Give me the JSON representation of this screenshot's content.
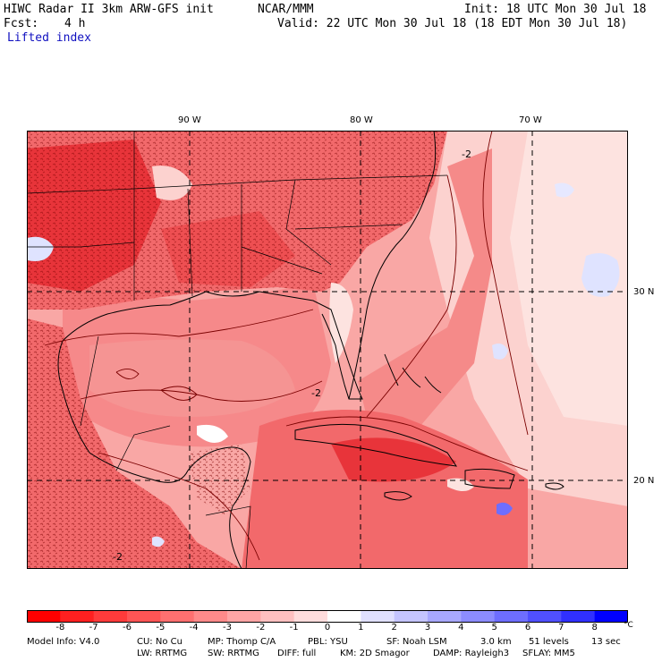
{
  "header": {
    "model_title": "HIWC Radar II 3km ARW-GFS init",
    "org": "NCAR/MMM",
    "init": "Init: 18 UTC Mon 30 Jul 18",
    "fcst_label": "Fcst:",
    "fcst_value": "4 h",
    "valid": "Valid: 22 UTC Mon 30 Jul 18 (18 EDT Mon 30 Jul 18)",
    "field": "Lifted index"
  },
  "map": {
    "lon_labels": [
      "90 W",
      "80 W",
      "70 W"
    ],
    "lat_labels": [
      "30 N",
      "20 N"
    ],
    "contour_labels": [
      "-2",
      "-2",
      "-2"
    ],
    "colors": {
      "strong_neg": "#e8343a",
      "mid_neg": "#f2696b",
      "weak_neg": "#f9a7a5",
      "near_zero": "#fde3e0",
      "pos": "#dfe3ff",
      "contour": "#7a0000",
      "boundary": "#000000"
    }
  },
  "colorbar": {
    "ticks": [
      "-8",
      "-7",
      "-6",
      "-5",
      "-4",
      "-3",
      "-2",
      "-1",
      "0",
      "1",
      "2",
      "3",
      "4",
      "5",
      "6",
      "7",
      "8"
    ],
    "unit": "°C",
    "colors": [
      "#ff0000",
      "#ff2020",
      "#ff3b3b",
      "#ff5555",
      "#ff7070",
      "#ff8a8a",
      "#ffa5a5",
      "#ffc0c0",
      "#ffdcdc",
      "#ffffff",
      "#e0e0ff",
      "#c4c4ff",
      "#a8a8ff",
      "#8c8cff",
      "#6e6eff",
      "#5050ff",
      "#3030ff",
      "#0000ff"
    ]
  },
  "footer": {
    "line1": [
      "Model Info: V4.0",
      "CU: No Cu",
      "MP: Thomp C/A",
      "PBL: YSU",
      "SF: Noah LSM",
      "3.0 km",
      "51 levels",
      "13 sec"
    ],
    "line2": [
      "LW: RRTMG",
      "SW: RRTMG",
      "DIFF: full",
      "KM: 2D Smagor",
      "DAMP: Rayleigh3",
      "SFLAY: MM5"
    ]
  }
}
